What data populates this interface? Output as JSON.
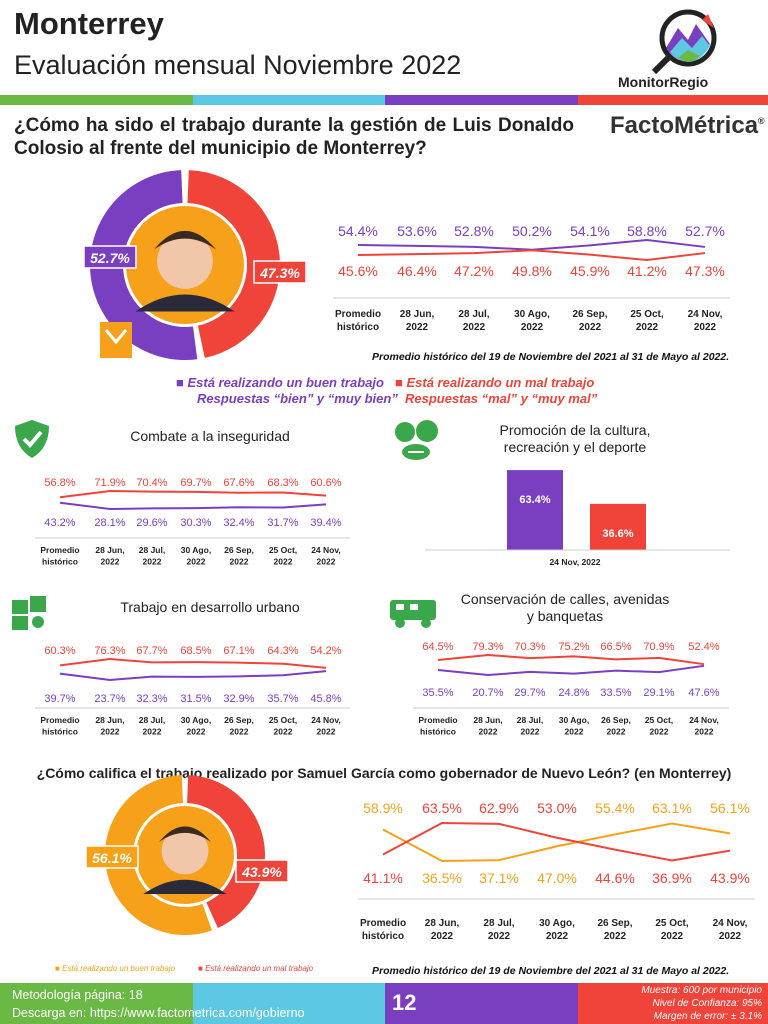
{
  "header": {
    "city": "Monterrey",
    "subtitle": "Evaluación mensual Noviembre 2022",
    "logo_monitor": "MonitorRegio",
    "logo_facto": "FactoMétrica",
    "registered": "®"
  },
  "colors": {
    "good": "#7a3fc0",
    "bad": "#f0433a",
    "orange": "#f7a11a",
    "green": "#6ab944",
    "cyan": "#5cc8e2",
    "purple": "#7a3fc0",
    "red": "#f0433a"
  },
  "question1": "¿Cómo ha sido el trabajo durante la gestión de Luis Donaldo Colosio al frente del municipio de Monterrey?",
  "question2": "¿Cómo califica el trabajo realizado por Samuel García como gobernador de Nuevo León? (en Monterrey)",
  "legend1": {
    "good": "Está realizando un buen trabajo",
    "good_sub": "Respuestas “bien” y “muy bien”",
    "bad": "Está realizando un mal trabajo",
    "bad_sub": "Respuestas “mal” y “muy mal”"
  },
  "legend2": {
    "good": "Está realizando un buen trabajo",
    "bad": "Está realizando un mal trabajo"
  },
  "note": "Promedio histórico del 19 de Noviembre del 2021 al 31 de Mayo al 2022.",
  "footer": {
    "methodology": "Metodología página: 18",
    "download_prefix": "Descarga en: ",
    "download_link": "https://www.factometrica.com/gobierno",
    "page": "12",
    "sample": "Muestra:  600 por municipio",
    "confidence": "Nivel de Confianza: 95%",
    "error": "Margen de error: ± 3.1%"
  },
  "categories": [
    [
      "Promedio",
      "histórico"
    ],
    [
      "28 Jun,",
      "2022"
    ],
    [
      "28 Jul,",
      "2022"
    ],
    [
      "30 Ago,",
      "2022"
    ],
    [
      "26 Sep,",
      "2022"
    ],
    [
      "25 Oct,",
      "2022"
    ],
    [
      "24 Nov,",
      "2022"
    ]
  ],
  "chart_data": [
    {
      "id": "colosio_donut",
      "type": "pie",
      "values": [
        52.7,
        47.3
      ],
      "labels": [
        "52.7%",
        "47.3%"
      ],
      "colors": [
        "#7a3fc0",
        "#f0433a"
      ]
    },
    {
      "id": "colosio_trend",
      "type": "line",
      "series": [
        {
          "name": "Está realizando un buen trabajo",
          "color": "#7a3fc0",
          "values": [
            54.4,
            53.6,
            52.8,
            50.2,
            54.1,
            58.8,
            52.7
          ]
        },
        {
          "name": "Está realizando un mal trabajo",
          "color": "#f0433a",
          "values": [
            45.6,
            46.4,
            47.2,
            49.8,
            45.9,
            41.2,
            47.3
          ]
        }
      ]
    },
    {
      "id": "inseguridad",
      "type": "line",
      "title": "Combate a la inseguridad",
      "series": [
        {
          "color": "#f0433a",
          "values": [
            56.8,
            71.9,
            70.4,
            69.7,
            67.6,
            68.3,
            60.6
          ]
        },
        {
          "color": "#7a3fc0",
          "values": [
            43.2,
            28.1,
            29.6,
            30.3,
            32.4,
            31.7,
            39.4
          ]
        }
      ]
    },
    {
      "id": "cultura",
      "type": "bar",
      "title": "Promoción de la cultura, recreación y el deporte",
      "categories": [
        "24 Nov, 2022"
      ],
      "series": [
        {
          "color": "#7a3fc0",
          "values": [
            63.4
          ]
        },
        {
          "color": "#f0433a",
          "values": [
            36.6
          ]
        }
      ]
    },
    {
      "id": "urbano",
      "type": "line",
      "title": "Trabajo en desarrollo urbano",
      "series": [
        {
          "color": "#f0433a",
          "values": [
            60.3,
            76.3,
            67.7,
            68.5,
            67.1,
            64.3,
            54.2
          ]
        },
        {
          "color": "#7a3fc0",
          "values": [
            39.7,
            23.7,
            32.3,
            31.5,
            32.9,
            35.7,
            45.8
          ]
        }
      ]
    },
    {
      "id": "calles",
      "type": "line",
      "title": "Conservación de calles, avenidas y banquetas",
      "series": [
        {
          "color": "#f0433a",
          "values": [
            64.5,
            79.3,
            70.3,
            75.2,
            66.5,
            70.9,
            52.4
          ]
        },
        {
          "color": "#7a3fc0",
          "values": [
            35.5,
            20.7,
            29.7,
            24.8,
            33.5,
            29.1,
            47.6
          ]
        }
      ]
    },
    {
      "id": "samuel_donut",
      "type": "pie",
      "values": [
        56.1,
        43.9
      ],
      "labels": [
        "56.1%",
        "43.9%"
      ],
      "colors": [
        "#f7a11a",
        "#f0433a"
      ]
    },
    {
      "id": "samuel_trend",
      "type": "line",
      "series": [
        {
          "name": "Está realizando un buen trabajo",
          "color": "#f7a11a",
          "values": [
            58.9,
            36.5,
            37.1,
            47.0,
            55.4,
            63.1,
            56.1
          ]
        },
        {
          "name": "Está realizando un mal trabajo",
          "color": "#f0433a",
          "values": [
            41.1,
            63.5,
            62.9,
            53.0,
            44.6,
            36.9,
            43.9
          ]
        }
      ]
    }
  ]
}
